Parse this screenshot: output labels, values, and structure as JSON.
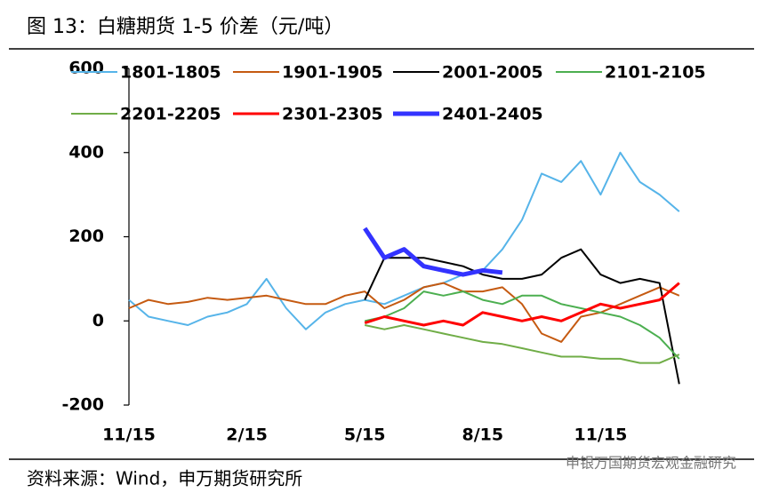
{
  "chart_data": {
    "type": "line",
    "title": "图 13：白糖期货 1-5 价差（元/吨）",
    "source": "资料来源：Wind，申万期货研究所",
    "watermark": "申银万国期货宏观金融研究",
    "categories": [
      "11/15",
      null,
      null,
      null,
      null,
      null,
      "2/15",
      null,
      null,
      null,
      null,
      null,
      "5/15",
      null,
      null,
      null,
      null,
      null,
      "8/15",
      null,
      null,
      null,
      null,
      null,
      "11/15",
      null,
      null,
      null,
      null
    ],
    "ylim": [
      -200,
      600
    ],
    "yticks": [
      -200,
      0,
      200,
      400,
      600
    ],
    "series": [
      {
        "name": "1801-1805",
        "color": "#56b4e9",
        "width": 2,
        "values": [
          50,
          10,
          0,
          -10,
          10,
          20,
          40,
          100,
          30,
          -20,
          20,
          40,
          50,
          40,
          60,
          80,
          90,
          110,
          120,
          170,
          240,
          350,
          330,
          380,
          300,
          400,
          330,
          300,
          260
        ]
      },
      {
        "name": "1901-1905",
        "color": "#c55a11",
        "width": 2,
        "values": [
          30,
          50,
          40,
          45,
          55,
          50,
          55,
          60,
          50,
          40,
          40,
          60,
          70,
          30,
          50,
          80,
          90,
          70,
          70,
          80,
          40,
          -30,
          -50,
          10,
          20,
          40,
          60,
          80,
          60
        ]
      },
      {
        "name": "2001-2005",
        "color": "#000000",
        "width": 2,
        "values": [
          null,
          null,
          null,
          null,
          null,
          null,
          null,
          null,
          null,
          null,
          null,
          null,
          50,
          150,
          150,
          150,
          140,
          130,
          110,
          100,
          100,
          110,
          150,
          170,
          110,
          90,
          100,
          90,
          -150
        ]
      },
      {
        "name": "2101-2105",
        "color": "#4caf50",
        "width": 2,
        "values": [
          null,
          null,
          null,
          null,
          null,
          null,
          null,
          null,
          null,
          null,
          null,
          null,
          0,
          10,
          30,
          70,
          60,
          70,
          50,
          40,
          60,
          60,
          40,
          30,
          20,
          10,
          -10,
          -40,
          -90
        ]
      },
      {
        "name": "2201-2205",
        "color": "#70ad47",
        "width": 2,
        "values": [
          null,
          null,
          null,
          null,
          null,
          null,
          null,
          null,
          null,
          null,
          null,
          null,
          -10,
          -20,
          -10,
          -20,
          -30,
          -40,
          -50,
          -55,
          -65,
          -75,
          -85,
          -85,
          -90,
          -90,
          -100,
          -100,
          -80
        ]
      },
      {
        "name": "2301-2305",
        "color": "#ff0000",
        "width": 3,
        "values": [
          null,
          null,
          null,
          null,
          null,
          null,
          null,
          null,
          null,
          null,
          null,
          null,
          -5,
          10,
          0,
          -10,
          0,
          -10,
          20,
          10,
          0,
          10,
          0,
          20,
          40,
          30,
          40,
          50,
          90
        ]
      },
      {
        "name": "2401-2405",
        "color": "#3333ff",
        "width": 5,
        "values": [
          null,
          null,
          null,
          null,
          null,
          null,
          null,
          null,
          null,
          null,
          null,
          null,
          220,
          150,
          170,
          130,
          120,
          110,
          120,
          115,
          null,
          null,
          null,
          null,
          null,
          null,
          null,
          null,
          null
        ]
      }
    ]
  }
}
